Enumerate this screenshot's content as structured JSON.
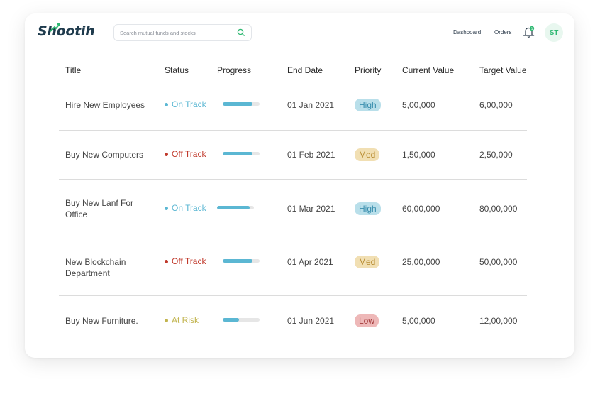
{
  "header": {
    "logo_text": "Shootih",
    "search_placeholder": "Search mutual funds and stocks",
    "nav": {
      "dashboard": "Dashboard",
      "orders": "Orders"
    },
    "notification_count": "1",
    "avatar_initials": "ST"
  },
  "table": {
    "columns": [
      "Title",
      "Status",
      "Progress",
      "End Date",
      "Priority",
      "Current Value",
      "Target Value"
    ],
    "rows": [
      {
        "title": "Hire New Employees",
        "status": "On Track",
        "status_color": "#5bb7d3",
        "progress": 0.8,
        "end_date": "01 Jan 2021",
        "priority": "High",
        "priority_bg": "#b9dfea",
        "priority_fg": "#3a8fae",
        "current": "5,00,000",
        "target": "6,00,000"
      },
      {
        "title": "Buy New Computers",
        "status": "Off Track",
        "status_color": "#c0392b",
        "progress": 0.8,
        "end_date": "01 Feb 2021",
        "priority": "Med",
        "priority_bg": "#f1dfb3",
        "priority_fg": "#b68a2e",
        "current": "1,50,000",
        "target": "2,50,000"
      },
      {
        "title": "Buy New Lanf For Office",
        "status": "On Track",
        "status_color": "#5bb7d3",
        "progress": 0.88,
        "end_date": "01 Mar 2021",
        "priority": "High",
        "priority_bg": "#b9dfea",
        "priority_fg": "#3a8fae",
        "current": "60,00,000",
        "target": "80,00,000"
      },
      {
        "title": "New Blockchain Department",
        "status": "Off Track",
        "status_color": "#c0392b",
        "progress": 0.8,
        "end_date": "01 Apr 2021",
        "priority": "Med",
        "priority_bg": "#f1dfb3",
        "priority_fg": "#b68a2e",
        "current": "25,00,000",
        "target": "50,00,000"
      },
      {
        "title": "Buy New Furniture.",
        "status": "At Risk",
        "status_color": "#c2b44e",
        "progress": 0.45,
        "end_date": "01 Jun 2021",
        "priority": "Low",
        "priority_bg": "#eeb8b8",
        "priority_fg": "#a33b3b",
        "current": "5,00,000",
        "target": "12,00,000"
      }
    ]
  },
  "colors": {
    "accent": "#2eb872",
    "progress": "#5bb7d3",
    "logo": "#1f3b4d"
  }
}
